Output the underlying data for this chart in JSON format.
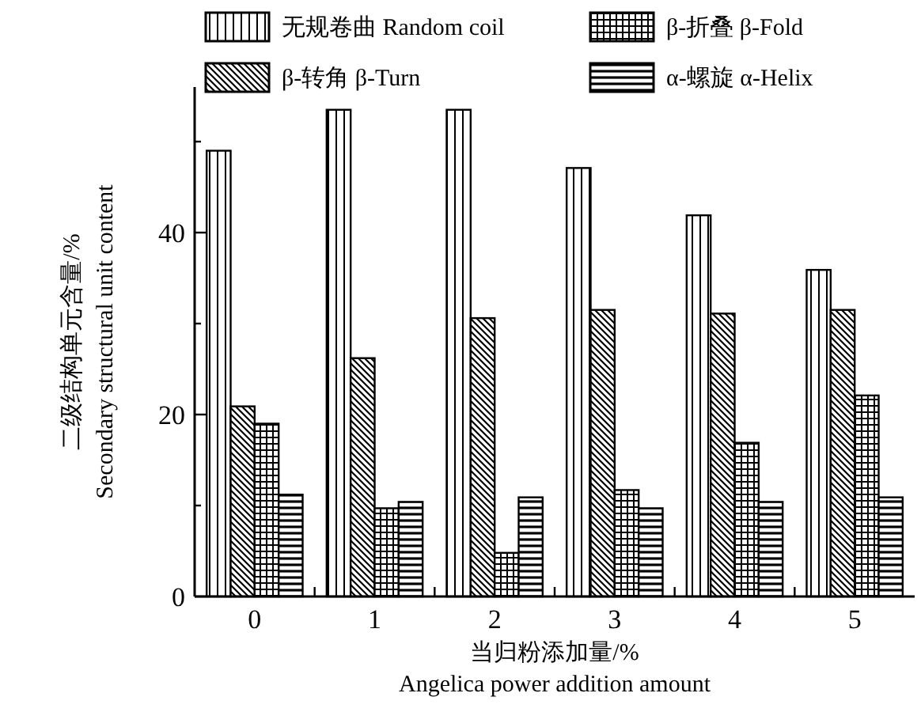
{
  "chart_data": {
    "type": "bar",
    "xlabel": "当归粉添加量/%\nAngelica power addition amount",
    "ylabel": "二级结构单元含量/%\nSecondary structural unit content",
    "categories": [
      "0",
      "1",
      "2",
      "3",
      "4",
      "5"
    ],
    "series": [
      {
        "name": "无规卷曲 Random coil",
        "color": "#000000",
        "values": [
          49,
          53.5,
          53.5,
          47.1,
          41.9,
          35.9
        ]
      },
      {
        "name": "β-转角  β-Turn",
        "color": "#000000",
        "values": [
          20.9,
          26.2,
          30.6,
          31.5,
          31.1,
          31.5
        ]
      },
      {
        "name": "β-折叠  β-Fold",
        "color": "#000000",
        "values": [
          19,
          9.7,
          4.8,
          11.7,
          16.9,
          22.1
        ]
      },
      {
        "name": "α-螺旋 α-Helix",
        "color": "#000000",
        "values": [
          11.2,
          10.4,
          10.9,
          9.7,
          10.4,
          10.9
        ]
      }
    ],
    "ylim": [
      0,
      56
    ],
    "yticks": [
      0,
      {
        "value": 10,
        "label": null
      },
      20,
      {
        "value": 30,
        "label": null
      },
      40,
      {
        "value": 50,
        "label": null
      }
    ],
    "grid": false,
    "legend": "top"
  }
}
